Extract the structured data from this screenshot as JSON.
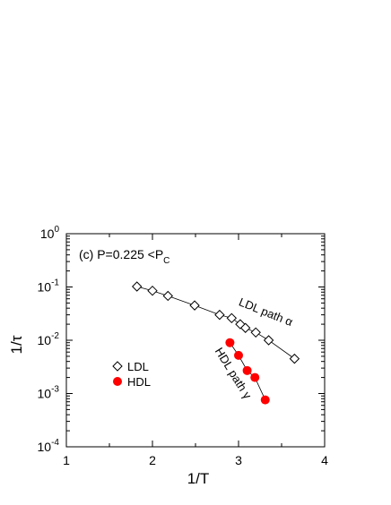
{
  "chart_data": {
    "type": "scatter",
    "panel_label": "(c) P=0.225 <P",
    "panel_label_sub": "C",
    "xlabel": "1/T",
    "ylabel": "1/τ",
    "xlim": [
      1,
      4
    ],
    "ylim": [
      0.0001,
      1
    ],
    "yscale": "log",
    "xticks": [
      1,
      2,
      3,
      4
    ],
    "xtick_labels": [
      "1",
      "2",
      "3",
      "4"
    ],
    "yticks": [
      0.0001,
      0.001,
      0.01,
      0.1,
      1
    ],
    "ytick_labels": [
      {
        "base": "10",
        "exp": "-4"
      },
      {
        "base": "10",
        "exp": "-3"
      },
      {
        "base": "10",
        "exp": "-2"
      },
      {
        "base": "10",
        "exp": "-1"
      },
      {
        "base": "10",
        "exp": "0"
      }
    ],
    "grid": false,
    "legend_position": "center-left",
    "series": [
      {
        "name": "LDL",
        "marker": "diamond-open",
        "color": "#000000",
        "line": true,
        "x": [
          1.82,
          2.0,
          2.18,
          2.49,
          2.78,
          2.92,
          3.02,
          3.08,
          3.2,
          3.35,
          3.65
        ],
        "y": [
          0.102,
          0.085,
          0.068,
          0.045,
          0.03,
          0.026,
          0.02,
          0.017,
          0.014,
          0.01,
          0.0045
        ]
      },
      {
        "name": "HDL",
        "marker": "circle-filled",
        "color": "#ff0000",
        "line": true,
        "x": [
          2.9,
          3.0,
          3.1,
          3.19,
          3.31
        ],
        "y": [
          0.009,
          0.0052,
          0.0027,
          0.002,
          0.00076
        ]
      }
    ],
    "annotations": [
      {
        "text": "LDL path α",
        "x": 3.3,
        "y": 0.029,
        "rotate": 22
      },
      {
        "text": "HDL path γ",
        "x": 2.9,
        "y": 0.0022,
        "rotate": 58
      }
    ]
  }
}
